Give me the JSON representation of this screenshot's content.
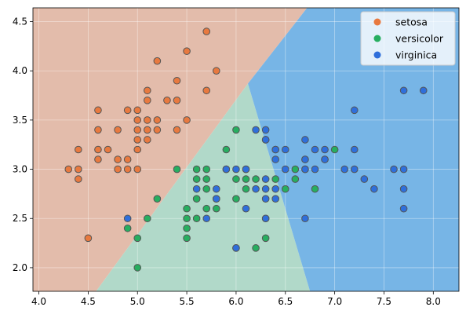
{
  "chart_data": {
    "type": "scatter",
    "title": "",
    "xlabel": "",
    "ylabel": "",
    "xlim": [
      3.94,
      8.26
    ],
    "ylim": [
      1.76,
      4.64
    ],
    "x_ticks": [
      4.0,
      4.5,
      5.0,
      5.5,
      6.0,
      6.5,
      7.0,
      7.5,
      8.0
    ],
    "y_ticks": [
      2.0,
      2.5,
      3.0,
      3.5,
      4.0,
      4.5
    ],
    "x_tick_labels": [
      "4.0",
      "4.5",
      "5.0",
      "5.5",
      "6.0",
      "6.5",
      "7.0",
      "7.5",
      "8.0"
    ],
    "y_tick_labels": [
      "2.0",
      "2.5",
      "3.0",
      "3.5",
      "4.0",
      "4.5"
    ],
    "grid": true,
    "legend_position": "top-right",
    "decision_regions": [
      {
        "class": "setosa",
        "color": "#e3bcab",
        "polygon": [
          [
            3.94,
            1.76
          ],
          [
            4.58,
            1.76
          ],
          [
            6.12,
            3.87
          ],
          [
            6.72,
            4.64
          ],
          [
            3.94,
            4.64
          ]
        ]
      },
      {
        "class": "versicolor",
        "color": "#b1d9c9",
        "polygon": [
          [
            4.58,
            1.76
          ],
          [
            6.75,
            1.76
          ],
          [
            6.12,
            3.87
          ]
        ]
      },
      {
        "class": "virginica",
        "color": "#77b5e6",
        "polygon": [
          [
            6.75,
            1.76
          ],
          [
            8.26,
            1.76
          ],
          [
            8.26,
            4.64
          ],
          [
            6.72,
            4.64
          ],
          [
            6.12,
            3.87
          ]
        ]
      }
    ],
    "series": [
      {
        "name": "setosa",
        "color": "#e8793f",
        "points": [
          [
            4.3,
            3.0
          ],
          [
            4.4,
            2.9
          ],
          [
            4.4,
            3.0
          ],
          [
            4.4,
            3.2
          ],
          [
            4.5,
            2.3
          ],
          [
            4.6,
            3.1
          ],
          [
            4.6,
            3.2
          ],
          [
            4.6,
            3.4
          ],
          [
            4.6,
            3.6
          ],
          [
            4.7,
            3.2
          ],
          [
            4.8,
            3.0
          ],
          [
            4.8,
            3.1
          ],
          [
            4.8,
            3.4
          ],
          [
            4.9,
            3.0
          ],
          [
            4.9,
            3.1
          ],
          [
            4.9,
            3.6
          ],
          [
            5.0,
            3.0
          ],
          [
            5.0,
            3.2
          ],
          [
            5.0,
            3.3
          ],
          [
            5.0,
            3.4
          ],
          [
            5.0,
            3.5
          ],
          [
            5.0,
            3.6
          ],
          [
            5.1,
            3.3
          ],
          [
            5.1,
            3.4
          ],
          [
            5.1,
            3.5
          ],
          [
            5.1,
            3.7
          ],
          [
            5.1,
            3.8
          ],
          [
            5.2,
            3.4
          ],
          [
            5.2,
            3.5
          ],
          [
            5.2,
            4.1
          ],
          [
            5.3,
            3.7
          ],
          [
            5.4,
            3.4
          ],
          [
            5.4,
            3.7
          ],
          [
            5.4,
            3.9
          ],
          [
            5.5,
            3.5
          ],
          [
            5.5,
            4.2
          ],
          [
            5.7,
            3.8
          ],
          [
            5.7,
            4.4
          ],
          [
            5.8,
            4.0
          ]
        ]
      },
      {
        "name": "versicolor",
        "color": "#27ae60",
        "points": [
          [
            4.9,
            2.4
          ],
          [
            5.0,
            2.0
          ],
          [
            5.0,
            2.3
          ],
          [
            5.1,
            2.5
          ],
          [
            5.2,
            2.7
          ],
          [
            5.4,
            3.0
          ],
          [
            5.5,
            2.3
          ],
          [
            5.5,
            2.4
          ],
          [
            5.5,
            2.5
          ],
          [
            5.5,
            2.6
          ],
          [
            5.6,
            2.5
          ],
          [
            5.6,
            2.7
          ],
          [
            5.6,
            2.9
          ],
          [
            5.6,
            3.0
          ],
          [
            5.7,
            2.6
          ],
          [
            5.7,
            2.8
          ],
          [
            5.7,
            2.9
          ],
          [
            5.7,
            3.0
          ],
          [
            5.8,
            2.6
          ],
          [
            5.8,
            2.7
          ],
          [
            5.9,
            3.0
          ],
          [
            5.9,
            3.2
          ],
          [
            6.0,
            2.2
          ],
          [
            6.0,
            2.7
          ],
          [
            6.0,
            2.9
          ],
          [
            6.0,
            3.4
          ],
          [
            6.1,
            2.8
          ],
          [
            6.1,
            2.9
          ],
          [
            6.1,
            3.0
          ],
          [
            6.2,
            2.2
          ],
          [
            6.2,
            2.9
          ],
          [
            6.3,
            2.3
          ],
          [
            6.3,
            2.5
          ],
          [
            6.3,
            3.3
          ],
          [
            6.4,
            2.9
          ],
          [
            6.4,
            3.2
          ],
          [
            6.5,
            2.8
          ],
          [
            6.6,
            2.9
          ],
          [
            6.6,
            3.0
          ],
          [
            6.7,
            3.0
          ],
          [
            6.7,
            3.1
          ],
          [
            6.8,
            2.8
          ],
          [
            6.9,
            3.1
          ],
          [
            7.0,
            3.2
          ]
        ]
      },
      {
        "name": "virginica",
        "color": "#2f6fdb",
        "points": [
          [
            4.9,
            2.5
          ],
          [
            5.6,
            2.8
          ],
          [
            5.7,
            2.5
          ],
          [
            5.8,
            2.7
          ],
          [
            5.8,
            2.8
          ],
          [
            5.9,
            3.0
          ],
          [
            6.0,
            2.2
          ],
          [
            6.0,
            3.0
          ],
          [
            6.1,
            2.6
          ],
          [
            6.1,
            3.0
          ],
          [
            6.2,
            2.8
          ],
          [
            6.2,
            3.4
          ],
          [
            6.3,
            2.5
          ],
          [
            6.3,
            2.7
          ],
          [
            6.3,
            2.8
          ],
          [
            6.3,
            2.9
          ],
          [
            6.3,
            3.3
          ],
          [
            6.3,
            3.4
          ],
          [
            6.4,
            2.7
          ],
          [
            6.4,
            2.8
          ],
          [
            6.4,
            3.1
          ],
          [
            6.4,
            3.2
          ],
          [
            6.5,
            3.0
          ],
          [
            6.5,
            3.2
          ],
          [
            6.7,
            2.5
          ],
          [
            6.7,
            3.0
          ],
          [
            6.7,
            3.1
          ],
          [
            6.7,
            3.3
          ],
          [
            6.8,
            3.0
          ],
          [
            6.8,
            3.2
          ],
          [
            6.9,
            3.1
          ],
          [
            6.9,
            3.2
          ],
          [
            7.1,
            3.0
          ],
          [
            7.2,
            3.0
          ],
          [
            7.2,
            3.2
          ],
          [
            7.2,
            3.6
          ],
          [
            7.3,
            2.9
          ],
          [
            7.4,
            2.8
          ],
          [
            7.6,
            3.0
          ],
          [
            7.7,
            2.6
          ],
          [
            7.7,
            2.8
          ],
          [
            7.7,
            3.0
          ],
          [
            7.7,
            3.8
          ],
          [
            7.9,
            3.8
          ]
        ]
      }
    ]
  }
}
